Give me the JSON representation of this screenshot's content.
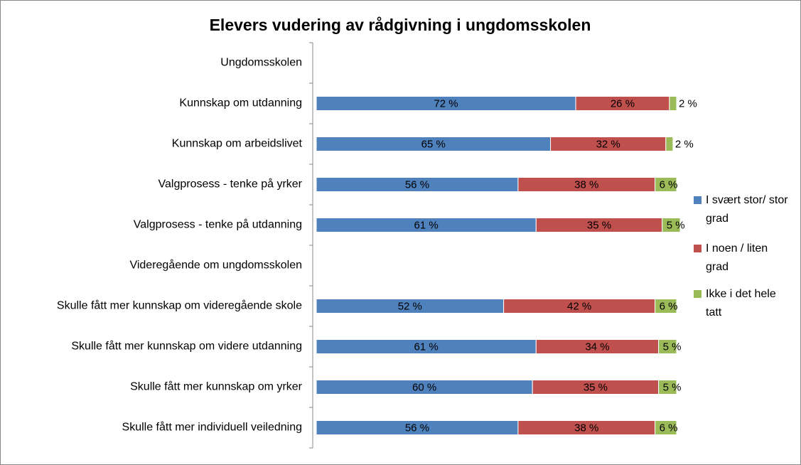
{
  "chart_data": {
    "type": "stacked-bar-horizontal",
    "title": "Elevers vudering av rådgivning i ungdomsskolen",
    "categories": [
      "Ungdomsskolen",
      "Kunnskap om utdanning",
      "Kunnskap om arbeidslivet",
      "Valgprosess - tenke på yrker",
      "Valgprosess - tenke på utdanning",
      "Videregående om ungdomsskolen",
      "Skulle fått mer kunnskap om videregående skole",
      "Skulle fått mer kunnskap om videre utdanning",
      "Skulle fått mer kunnskap om yrker",
      "Skulle fått mer individuell veiledning"
    ],
    "xlim": [
      0,
      100
    ],
    "legend": "right",
    "series": [
      {
        "name": "I svært stor/ stor grad",
        "color": "#4f81bd",
        "values": [
          null,
          72,
          65,
          56,
          61,
          null,
          52,
          61,
          60,
          56
        ],
        "value_labels": [
          null,
          "72 %",
          "65 %",
          "56 %",
          "61 %",
          null,
          "52 %",
          "61 %",
          "60 %",
          "56 %"
        ]
      },
      {
        "name": "I noen / liten grad",
        "color": "#c0504d",
        "values": [
          null,
          26,
          32,
          38,
          35,
          null,
          42,
          34,
          35,
          38
        ],
        "value_labels": [
          null,
          "26 %",
          "32 %",
          "38 %",
          "35 %",
          null,
          "42 %",
          "34 %",
          "35 %",
          "38 %"
        ]
      },
      {
        "name": "Ikke i det hele tatt",
        "color": "#9bbb59",
        "values": [
          null,
          2,
          2,
          6,
          5,
          null,
          6,
          5,
          5,
          6
        ],
        "value_labels": [
          null,
          "2 %",
          "2 %",
          "6 %",
          "5 %",
          null,
          "6 %",
          "5 %",
          "5 %",
          "6 %"
        ]
      }
    ]
  }
}
